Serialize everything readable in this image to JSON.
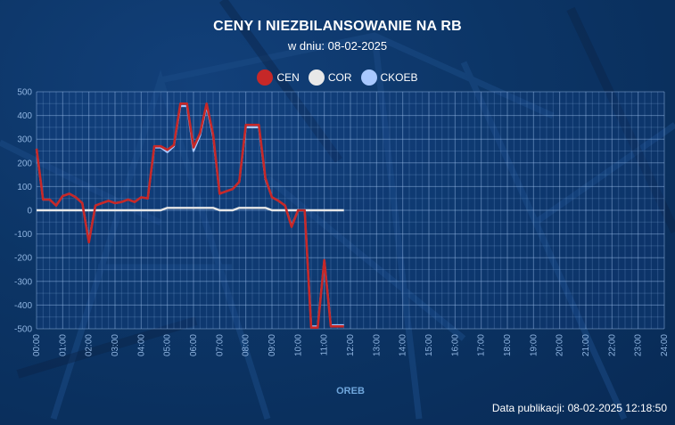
{
  "title": "CENY I NIEZBILANSOWANIE NA RB",
  "subtitle": "w dniu: 08-02-2025",
  "publication": "Data publikacji: 08-02-2025 12:18:50",
  "colors": {
    "CEN": "#c62828",
    "COR": "#e8e8e8",
    "CKOEB": "#a8c8ff"
  },
  "legend": [
    {
      "key": "CEN",
      "label": "CEN"
    },
    {
      "key": "COR",
      "label": "COR"
    },
    {
      "key": "CKOEB",
      "label": "CKOEB"
    }
  ],
  "chart_data": {
    "type": "line",
    "xlabel": "OREB",
    "ylabel": "",
    "ylim": [
      -500,
      500
    ],
    "xlim": [
      0,
      24
    ],
    "y_ticks": [
      "500",
      "400",
      "300",
      "200",
      "100",
      "0",
      "-100",
      "-200",
      "-300",
      "-400",
      "-500"
    ],
    "x_ticks": [
      "00:00",
      "01:00",
      "02:00",
      "03:00",
      "04:00",
      "05:00",
      "06:00",
      "07:00",
      "08:00",
      "09:00",
      "10:00",
      "11:00",
      "12:00",
      "13:00",
      "14:00",
      "15:00",
      "16:00",
      "17:00",
      "18:00",
      "19:00",
      "20:00",
      "21:00",
      "22:00",
      "23:00",
      "24:00"
    ],
    "grid": true,
    "legend_position": "top-center",
    "x": [
      0.0,
      0.25,
      0.5,
      0.75,
      1.0,
      1.25,
      1.5,
      1.75,
      2.0,
      2.25,
      2.5,
      2.75,
      3.0,
      3.25,
      3.5,
      3.75,
      4.0,
      4.25,
      4.5,
      4.75,
      5.0,
      5.25,
      5.5,
      5.75,
      6.0,
      6.25,
      6.5,
      6.75,
      7.0,
      7.25,
      7.5,
      7.75,
      8.0,
      8.25,
      8.5,
      8.75,
      9.0,
      9.25,
      9.5,
      9.75,
      10.0,
      10.25,
      10.5,
      10.75,
      11.0,
      11.25,
      11.5,
      11.75
    ],
    "series": [
      {
        "name": "CEN",
        "values": [
          260,
          45,
          45,
          20,
          60,
          70,
          55,
          30,
          -135,
          20,
          30,
          40,
          30,
          35,
          45,
          35,
          55,
          50,
          270,
          270,
          255,
          275,
          450,
          450,
          265,
          325,
          450,
          320,
          70,
          80,
          90,
          120,
          360,
          360,
          360,
          135,
          55,
          40,
          20,
          -70,
          0,
          0,
          -495,
          -495,
          -210,
          -490,
          -490,
          -490
        ]
      },
      {
        "name": "COR",
        "values": [
          0,
          0,
          0,
          0,
          0,
          0,
          0,
          0,
          0,
          0,
          0,
          0,
          0,
          0,
          0,
          0,
          0,
          0,
          0,
          0,
          10,
          10,
          10,
          10,
          10,
          10,
          10,
          10,
          0,
          0,
          0,
          10,
          10,
          10,
          10,
          10,
          0,
          0,
          0,
          0,
          0,
          0,
          0,
          0,
          0,
          0,
          0,
          0
        ]
      },
      {
        "name": "CKOEB",
        "values": [
          255,
          45,
          45,
          20,
          60,
          70,
          55,
          30,
          -130,
          20,
          30,
          40,
          30,
          35,
          45,
          35,
          55,
          50,
          265,
          265,
          245,
          270,
          440,
          440,
          250,
          315,
          440,
          310,
          70,
          80,
          90,
          120,
          350,
          350,
          350,
          130,
          55,
          40,
          20,
          -65,
          0,
          0,
          -490,
          -490,
          -210,
          -485,
          -485,
          -485
        ]
      }
    ]
  }
}
